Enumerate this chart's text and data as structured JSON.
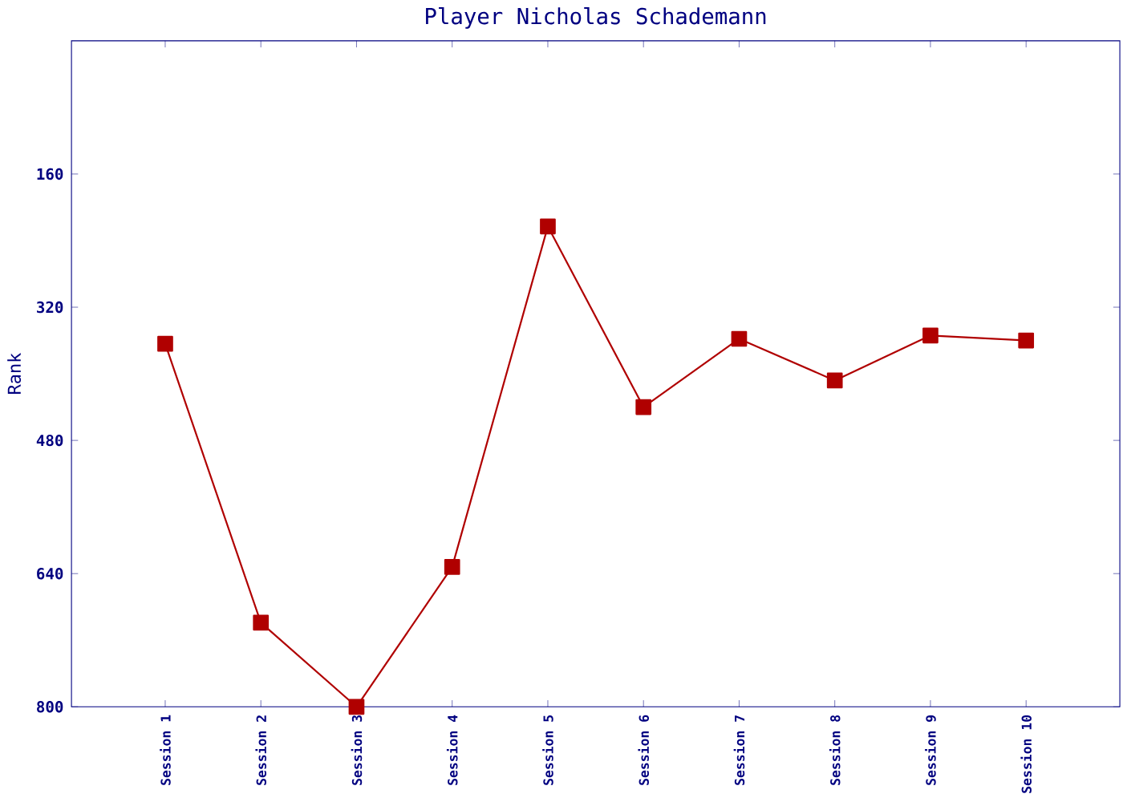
{
  "chart_data": {
    "type": "line",
    "title": "Player Nicholas Schademann",
    "ylabel": "Rank",
    "categories": [
      "Session 1",
      "Session 2",
      "Session 3",
      "Session 4",
      "Session 5",
      "Session 6",
      "Session 7",
      "Session 8",
      "Session 9",
      "Session 10"
    ],
    "series": [
      {
        "color": "#b00000",
        "values": [
          364,
          699,
          800,
          632,
          223,
          440,
          358,
          408,
          354,
          360
        ]
      }
    ],
    "ylim": [
      800,
      0
    ],
    "yticks": [
      160,
      320,
      480,
      640,
      800
    ],
    "marker": "square"
  }
}
